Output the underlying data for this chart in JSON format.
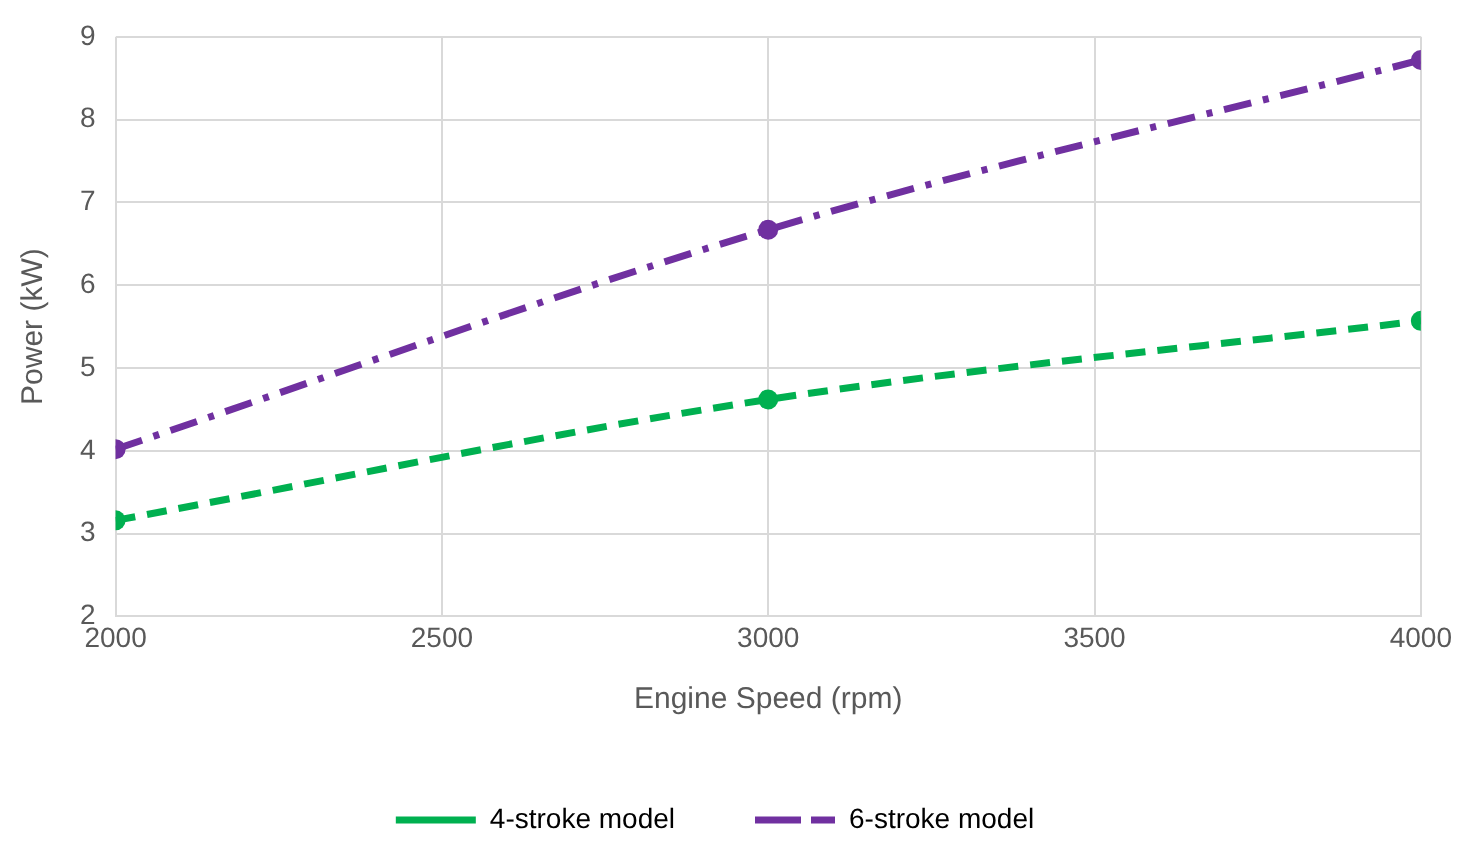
{
  "chart_data": {
    "type": "line",
    "xlabel": "Engine Speed (rpm)",
    "ylabel": "Power (kW)",
    "x": [
      2000,
      3000,
      4000
    ],
    "series": [
      {
        "name": "4-stroke model",
        "color": "#00b050",
        "values": [
          3.16,
          4.62,
          5.57
        ],
        "line_style": "dashed"
      },
      {
        "name": "6-stroke model",
        "color": "#7030a0",
        "values": [
          4.02,
          6.67,
          8.72
        ],
        "line_style": "dashdot"
      }
    ],
    "xlim": [
      2000,
      4000
    ],
    "xticks": [
      2000,
      2500,
      3000,
      3500,
      4000
    ],
    "ylim": [
      2,
      9
    ],
    "yticks": [
      2,
      3,
      4,
      5,
      6,
      7,
      8,
      9
    ],
    "grid": true,
    "legend": "bottom",
    "marker": "circle"
  }
}
